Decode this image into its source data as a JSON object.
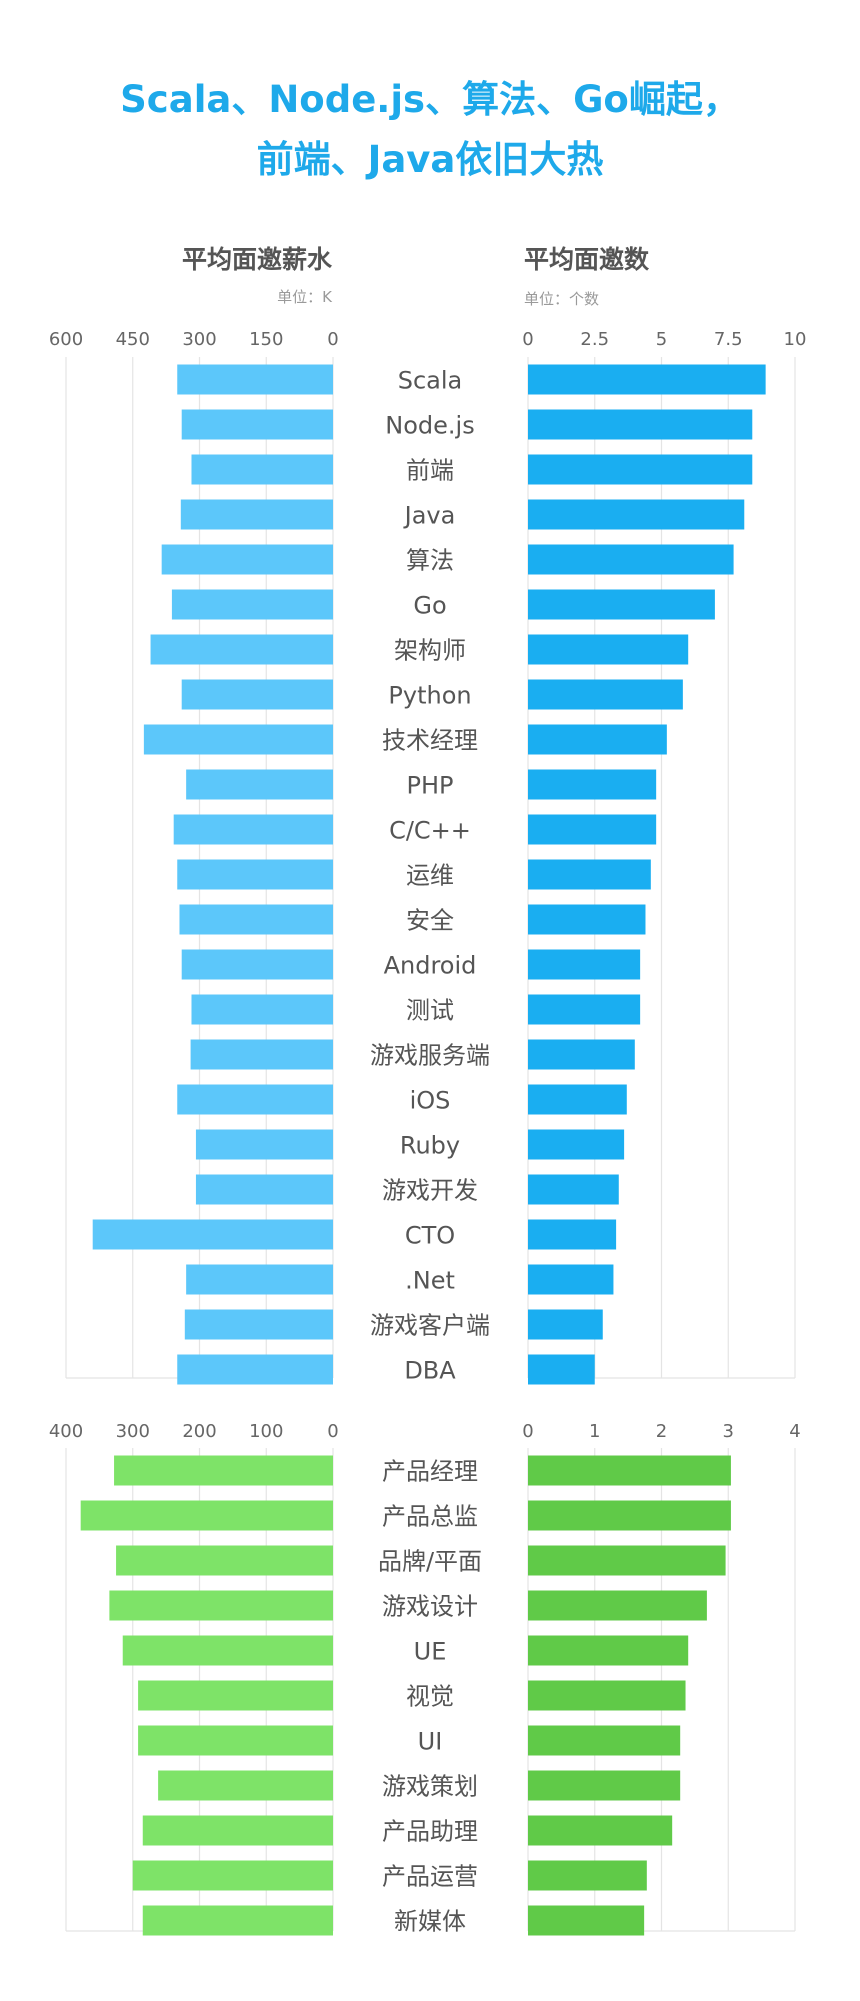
{
  "title": {
    "line1": "Scala、Node.js、算法、Go崛起，",
    "line2": "前端、Java依旧大热"
  },
  "headers": {
    "left_title": "平均面邀薪水",
    "left_unit": "单位：K",
    "right_title": "平均面邀数",
    "right_unit": "单位：个数"
  },
  "colors": {
    "title": "#1ea9ea",
    "header": "#555555",
    "unit": "#9a9a9a",
    "tick": "#666666",
    "category": "#555555",
    "grid": "#e4e4e4",
    "tech_salary": "#5cc7fa",
    "tech_count": "#1aaef1",
    "product_salary": "#7ee368",
    "product_count": "#60ca48"
  },
  "chart_data": [
    {
      "type": "bar",
      "panel": "tech",
      "categories": [
        "Scala",
        "Node.js",
        "前端",
        "Java",
        "算法",
        "Go",
        "架构师",
        "Python",
        "技术经理",
        "PHP",
        "C/C++",
        "运维",
        "安全",
        "Android",
        "测试",
        "游戏服务端",
        "iOS",
        "Ruby",
        "游戏开发",
        "CTO",
        ".Net",
        "游戏客户端",
        "DBA"
      ],
      "salary": {
        "title": "平均面邀薪水",
        "unit": "单位：K",
        "ticks": [
          600,
          450,
          300,
          150,
          0
        ],
        "xlim": [
          0,
          600
        ],
        "values": [
          350,
          340,
          318,
          342,
          385,
          362,
          410,
          340,
          425,
          330,
          358,
          350,
          345,
          340,
          318,
          320,
          350,
          308,
          308,
          540,
          330,
          333,
          350
        ]
      },
      "count": {
        "title": "平均面邀数",
        "unit": "单位：个数",
        "ticks": [
          "0",
          "2.5",
          "5",
          "7.5",
          "10"
        ],
        "xlim": [
          0,
          10
        ],
        "values": [
          8.9,
          8.4,
          8.4,
          8.1,
          7.7,
          7.0,
          6.0,
          5.8,
          5.2,
          4.8,
          4.8,
          4.6,
          4.4,
          4.2,
          4.2,
          4.0,
          3.7,
          3.6,
          3.4,
          3.3,
          3.2,
          2.8,
          2.5
        ]
      }
    },
    {
      "type": "bar",
      "panel": "product",
      "categories": [
        "产品经理",
        "产品总监",
        "品牌/平面",
        "游戏设计",
        "UE",
        "视觉",
        "UI",
        "游戏策划",
        "产品助理",
        "产品运营",
        "新媒体"
      ],
      "salary": {
        "ticks": [
          400,
          300,
          200,
          100,
          0
        ],
        "xlim": [
          0,
          400
        ],
        "values": [
          328,
          378,
          325,
          335,
          315,
          292,
          292,
          262,
          285,
          300,
          285
        ]
      },
      "count": {
        "ticks": [
          "0",
          "1",
          "2",
          "3",
          "4"
        ],
        "xlim": [
          0,
          4
        ],
        "values": [
          3.04,
          3.04,
          2.96,
          2.68,
          2.4,
          2.36,
          2.28,
          2.28,
          2.16,
          1.78,
          1.74
        ]
      }
    }
  ]
}
